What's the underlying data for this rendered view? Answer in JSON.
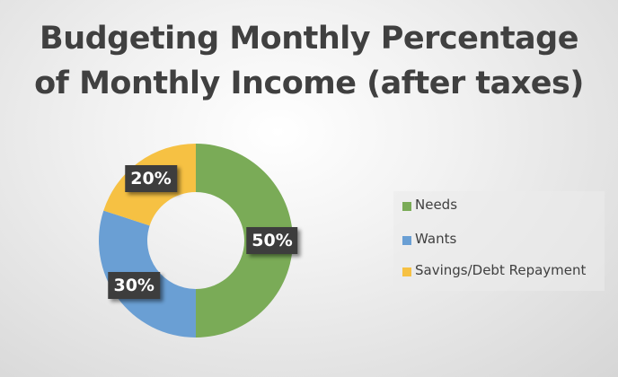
{
  "chart_data": {
    "type": "pie",
    "variant": "donut",
    "title_lines": [
      "Budgeting Monthly Percentage",
      "of Monthly Income (after taxes)"
    ],
    "categories": [
      "Needs",
      "Wants",
      "Savings/Debt Repayment"
    ],
    "values": [
      50,
      30,
      20
    ],
    "data_labels": [
      "50%",
      "30%",
      "20%"
    ],
    "colors": [
      "#7aab57",
      "#6a9fd4",
      "#f6c143"
    ],
    "legend_position": "right"
  }
}
